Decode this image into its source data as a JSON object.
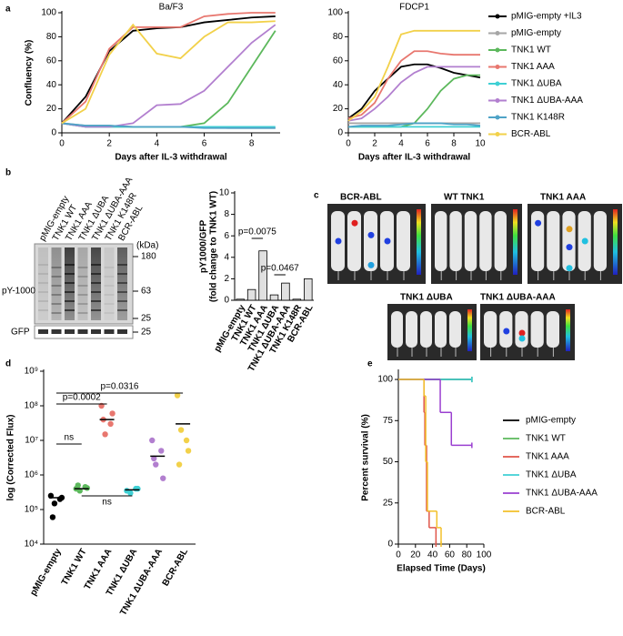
{
  "panels": [
    "a",
    "b",
    "c",
    "d",
    "e"
  ],
  "blot": {
    "lanes": [
      "pMIG-empty",
      "TNK1 WT",
      "TNK1 AAA",
      "TNK1 ΔUBA",
      "TNK1 ΔUBA-AAA",
      "TNK1 K148R",
      "BCR-ABL"
    ],
    "unit": "(kDa)",
    "markers": [
      "180",
      "63",
      "25",
      "25"
    ],
    "rows": [
      "pY-1000",
      "GFP"
    ]
  },
  "imaging": {
    "titles": [
      "BCR-ABL",
      "WT TNK1",
      "TNK1 AAA",
      "TNK1 ΔUBA",
      "TNK1 ΔUBA-AAA"
    ]
  },
  "chart_data": [
    {
      "type": "line",
      "title": "Ba/F3",
      "xlabel": "Days after IL-3 withdrawal",
      "ylabel": "Confluency (%)",
      "x": [
        0,
        1,
        2,
        3,
        4,
        5,
        6,
        7,
        8,
        9
      ],
      "xlim": [
        0,
        9.2
      ],
      "xticks": [
        0,
        2,
        4,
        6,
        8
      ],
      "ylim": [
        0,
        100
      ],
      "yticks": [
        0,
        20,
        40,
        60,
        80,
        100
      ],
      "series": [
        {
          "name": "pMIG-empty +IL3",
          "color": "#000000",
          "values": [
            8,
            30,
            68,
            85,
            87,
            88,
            92,
            94,
            96,
            97
          ]
        },
        {
          "name": "pMIG-empty",
          "color": "#a6a6a6",
          "values": [
            8,
            6,
            6,
            5,
            5,
            5,
            5,
            4,
            4,
            4
          ]
        },
        {
          "name": "TNK1 WT",
          "color": "#5cb85c",
          "values": [
            8,
            5,
            5,
            5,
            5,
            5,
            8,
            25,
            55,
            85
          ]
        },
        {
          "name": "TNK1 AAA",
          "color": "#e8776f",
          "values": [
            8,
            26,
            70,
            88,
            88,
            88,
            97,
            99,
            100,
            100
          ]
        },
        {
          "name": "TNK1 ΔUBA",
          "color": "#3fd0d4",
          "values": [
            8,
            5,
            5,
            5,
            5,
            5,
            5,
            5,
            5,
            5
          ]
        },
        {
          "name": "TNK1 ΔUBA-AAA",
          "color": "#b27fcf",
          "values": [
            8,
            5,
            5,
            8,
            23,
            24,
            35,
            55,
            75,
            90
          ]
        },
        {
          "name": "TNK1 K148R",
          "color": "#4fa3c7",
          "values": [
            8,
            6,
            6,
            5,
            5,
            5,
            4,
            4,
            4,
            4
          ]
        },
        {
          "name": "BCR-ABL",
          "color": "#f2d14a",
          "values": [
            8,
            20,
            65,
            90,
            66,
            62,
            80,
            92,
            92,
            93
          ]
        }
      ]
    },
    {
      "type": "line",
      "title": "FDCP1",
      "xlabel": "Days after IL-3 withdrawal",
      "x": [
        0,
        1,
        2,
        3,
        4,
        5,
        6,
        7,
        8,
        9,
        10
      ],
      "xlim": [
        0,
        10
      ],
      "xticks": [
        0,
        2,
        4,
        6,
        8,
        10
      ],
      "ylim": [
        0,
        100
      ],
      "yticks": [
        0,
        20,
        40,
        60,
        80,
        100
      ],
      "series": [
        {
          "color": "#000000",
          "values": [
            12,
            20,
            35,
            45,
            55,
            57,
            57,
            54,
            50,
            48,
            46
          ]
        },
        {
          "color": "#a6a6a6",
          "values": [
            8,
            8,
            8,
            8,
            8,
            8,
            8,
            8,
            8,
            8,
            8
          ]
        },
        {
          "color": "#5cb85c",
          "values": [
            5,
            5,
            5,
            5,
            5,
            8,
            20,
            35,
            45,
            48,
            48
          ]
        },
        {
          "color": "#e8776f",
          "values": [
            12,
            15,
            25,
            45,
            60,
            68,
            68,
            66,
            65,
            65,
            65
          ]
        },
        {
          "color": "#3fd0d4",
          "values": [
            5,
            5,
            5,
            5,
            5,
            5,
            5,
            5,
            5,
            5,
            5
          ]
        },
        {
          "color": "#b27fcf",
          "values": [
            10,
            12,
            20,
            30,
            42,
            50,
            55,
            55,
            55,
            55,
            55
          ]
        },
        {
          "color": "#4fa3c7",
          "values": [
            5,
            6,
            6,
            6,
            7,
            8,
            8,
            8,
            7,
            7,
            6
          ]
        },
        {
          "color": "#f2d14a",
          "values": [
            10,
            18,
            30,
            55,
            82,
            85,
            85,
            85,
            85,
            85,
            85
          ]
        }
      ]
    },
    {
      "type": "bar",
      "ylabel": [
        "pY1000/GFP",
        "(fold change to TNK1 WT)"
      ],
      "categories": [
        "pMIG-empty",
        "TNK1 WT",
        "TNK1 AAA",
        "TNK1 ΔUBA",
        "TNK1 ΔUBA-AAA",
        "TNK1 K148R",
        "BCR-ABL"
      ],
      "values": [
        0.1,
        1,
        4.6,
        0.5,
        1.6,
        0.1,
        2
      ],
      "color": "#e0e0e0",
      "ylim": [
        0,
        10
      ],
      "yticks": [
        0,
        2,
        4,
        6,
        8,
        10
      ],
      "annotations": [
        "p=0.0075",
        "p=0.0467"
      ]
    },
    {
      "type": "dot",
      "ylabel": "log (Corrected Flux)",
      "yscale": "log",
      "categories": [
        "pMIG-empty",
        "TNK1 WT",
        "TNK1 AAA",
        "TNK1 ΔUBA",
        "TNK1 ΔUBA-AAA",
        "BCR-ABL"
      ],
      "colors": [
        "#000000",
        "#5cb85c",
        "#e8776f",
        "#3fd0d4",
        "#b27fcf",
        "#f2d14a"
      ],
      "points": [
        [
          250000,
          200000,
          150000,
          220000,
          60000
        ],
        [
          400000,
          450000,
          350000,
          420000,
          500000
        ],
        [
          100000000,
          30000000,
          15000000,
          60000000,
          40000000
        ],
        [
          350000,
          400000,
          300000,
          400000
        ],
        [
          10000000,
          5000000,
          2000000,
          800000,
          3000000
        ],
        [
          200000000,
          10000000,
          20000000,
          5000000,
          2000000
        ]
      ],
      "means": [
        220000,
        400000,
        40000000,
        370000,
        3500000,
        30000000
      ],
      "ylim": [
        10000,
        1000000000
      ],
      "yticks": [
        {
          "value": 10000,
          "label": "10⁴"
        },
        {
          "value": 100000,
          "label": "10⁵"
        },
        {
          "value": 1000000,
          "label": "10⁶"
        },
        {
          "value": 10000000,
          "label": "10⁷"
        },
        {
          "value": 100000000,
          "label": "10⁸"
        },
        {
          "value": 1000000000,
          "label": "10⁹"
        }
      ],
      "annotations": [
        "ns",
        "p=0.0002",
        "p=0.0316",
        "ns"
      ]
    },
    {
      "type": "step",
      "xlabel": "Elapsed Time (Days)",
      "ylabel": "Percent survival (%)",
      "xlim": [
        0,
        100
      ],
      "xticks": [
        0,
        20,
        40,
        60,
        80,
        100
      ],
      "ylim": [
        0,
        105
      ],
      "yticks": [
        0,
        25,
        50,
        75,
        100
      ],
      "series": [
        {
          "name": "pMIG-empty",
          "color": "#000000",
          "x": [
            0,
            86
          ],
          "values": [
            100,
            100
          ]
        },
        {
          "name": "TNK1 WT",
          "color": "#5cb85c",
          "x": [
            0,
            86
          ],
          "values": [
            100,
            100
          ]
        },
        {
          "name": "TNK1 AAA",
          "color": "#e0554a",
          "x": [
            0,
            30,
            31,
            33,
            36,
            44
          ],
          "values": [
            100,
            80,
            60,
            20,
            10,
            0
          ]
        },
        {
          "name": "TNK1 ΔUBA",
          "color": "#3fd0d4",
          "x": [
            0,
            86
          ],
          "values": [
            100,
            100
          ]
        },
        {
          "name": "TNK1 ΔUBA-AAA",
          "color": "#9a3fd0",
          "x": [
            0,
            49,
            62,
            86
          ],
          "values": [
            100,
            80,
            60,
            60
          ]
        },
        {
          "name": "BCR-ABL",
          "color": "#f2c02a",
          "x": [
            0,
            30,
            32,
            34,
            45,
            50
          ],
          "values": [
            100,
            90,
            50,
            20,
            10,
            0
          ]
        }
      ]
    }
  ]
}
